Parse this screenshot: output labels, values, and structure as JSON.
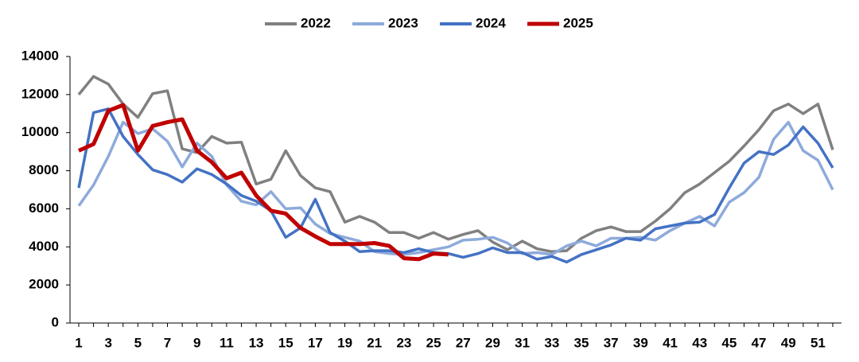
{
  "chart_data": {
    "type": "line",
    "categories": [
      1,
      null,
      3,
      null,
      5,
      null,
      7,
      null,
      9,
      null,
      11,
      null,
      13,
      null,
      15,
      null,
      17,
      null,
      19,
      null,
      21,
      null,
      23,
      null,
      25,
      null,
      27,
      null,
      29,
      null,
      31,
      null,
      33,
      null,
      35,
      null,
      37,
      null,
      39,
      null,
      41,
      null,
      43,
      null,
      45,
      null,
      47,
      null,
      49,
      null,
      51,
      null
    ],
    "ylim": [
      0,
      14000
    ],
    "yticks": [
      0,
      2000,
      4000,
      6000,
      8000,
      10000,
      12000,
      14000
    ],
    "grid": false,
    "legend": "top",
    "series": [
      {
        "name": "2022",
        "color": "#808080",
        "values": [
          12000,
          12950,
          12550,
          11500,
          10800,
          12050,
          12200,
          9150,
          8950,
          9800,
          9450,
          9500,
          7300,
          7550,
          9050,
          7750,
          7100,
          6900,
          5300,
          5600,
          5300,
          4750,
          4750,
          4450,
          4750,
          4400,
          4650,
          4850,
          4250,
          3850,
          4300,
          3900,
          3750,
          3800,
          4450,
          4850,
          5050,
          4800,
          4800,
          5350,
          6000,
          6850,
          7300,
          7900,
          8500,
          9300,
          10150,
          11150,
          11500,
          11000,
          11500,
          9100
        ]
      },
      {
        "name": "2023",
        "color": "#8eaadb",
        "values": [
          6150,
          7250,
          8750,
          10550,
          9950,
          10200,
          9550,
          8200,
          9450,
          8750,
          7250,
          6400,
          6200,
          6900,
          6000,
          6050,
          5200,
          4700,
          4500,
          4300,
          3750,
          3650,
          3600,
          3700,
          3850,
          4000,
          4350,
          4400,
          4500,
          4200,
          3650,
          3700,
          3600,
          4050,
          4300,
          4050,
          4450,
          4450,
          4500,
          4350,
          4850,
          5250,
          5600,
          5100,
          6350,
          6850,
          7650,
          9650,
          10550,
          9050,
          8550,
          7000
        ]
      },
      {
        "name": "2024",
        "color": "#4472c4",
        "values": [
          7100,
          11050,
          11250,
          9800,
          8850,
          8050,
          7800,
          7400,
          8100,
          7800,
          7300,
          6700,
          6400,
          5900,
          4500,
          5000,
          6500,
          4750,
          4300,
          3750,
          3800,
          3800,
          3700,
          3900,
          3700,
          3650,
          3450,
          3650,
          3950,
          3700,
          3700,
          3350,
          3500,
          3200,
          3600,
          3850,
          4100,
          4450,
          4350,
          4950,
          5100,
          5250,
          5300,
          5700,
          7100,
          8400,
          9000,
          8850,
          9350,
          10300,
          9450,
          8150
        ]
      },
      {
        "name": "2025",
        "color": "#c00000",
        "values": [
          9050,
          9400,
          11150,
          11450,
          9050,
          10350,
          10550,
          10700,
          9050,
          8450,
          7600,
          7900,
          6700,
          5900,
          5750,
          5000,
          4550,
          4150,
          4150,
          4150,
          4200,
          4050,
          3400,
          3350,
          3650,
          3600,
          null,
          null,
          null,
          null,
          null,
          null,
          null,
          null,
          null,
          null,
          null,
          null,
          null,
          null,
          null,
          null,
          null,
          null,
          null,
          null,
          null,
          null,
          null,
          null,
          null,
          null
        ]
      }
    ]
  }
}
